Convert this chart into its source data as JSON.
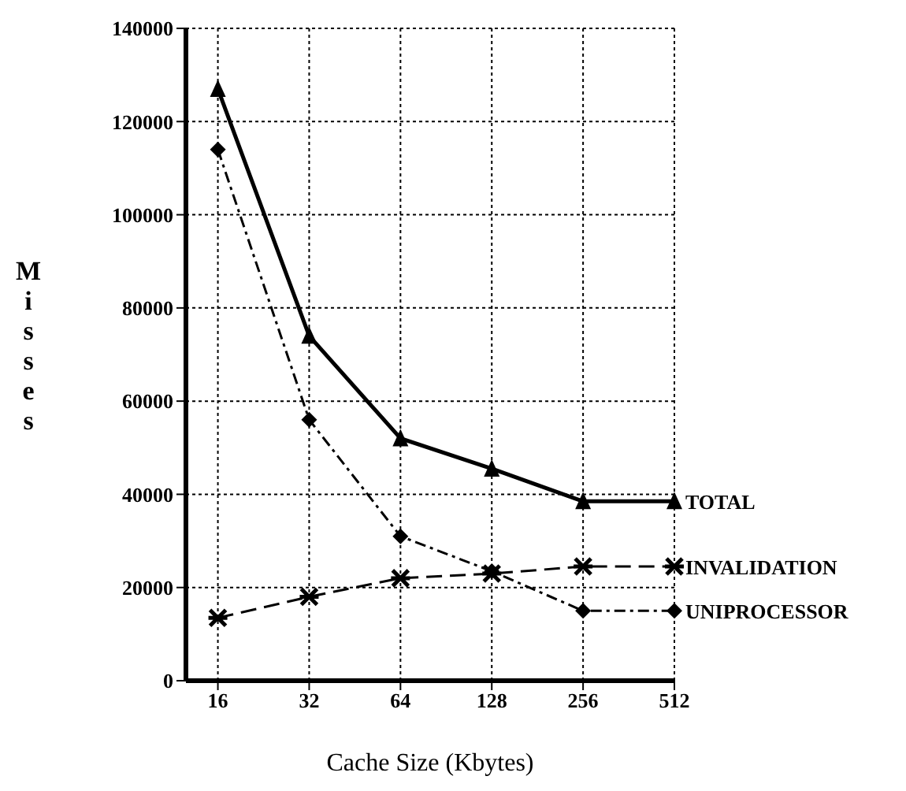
{
  "chart_data": {
    "type": "line",
    "xlabel": "Cache Size (Kbytes)",
    "ylabel": "Misses",
    "categories": [
      "16",
      "32",
      "64",
      "128",
      "256",
      "512"
    ],
    "ylim": [
      0,
      140000
    ],
    "yticks": [
      0,
      20000,
      40000,
      60000,
      80000,
      100000,
      120000,
      140000
    ],
    "grid": true,
    "legend": false,
    "series": [
      {
        "name": "TOTAL",
        "color": "#000000",
        "marker": "triangle",
        "line_style": "solid",
        "values": [
          127000,
          74000,
          52000,
          45500,
          38500,
          38500
        ]
      },
      {
        "name": "INVALIDATION",
        "color": "#000000",
        "marker": "cross",
        "line_style": "dashed",
        "values": [
          13500,
          18000,
          22000,
          23000,
          24500,
          24500
        ]
      },
      {
        "name": "UNIPROCESSOR",
        "color": "#000000",
        "marker": "diamond",
        "line_style": "dotted",
        "values": [
          114000,
          56000,
          31000,
          23500,
          15000,
          15000
        ]
      }
    ]
  }
}
